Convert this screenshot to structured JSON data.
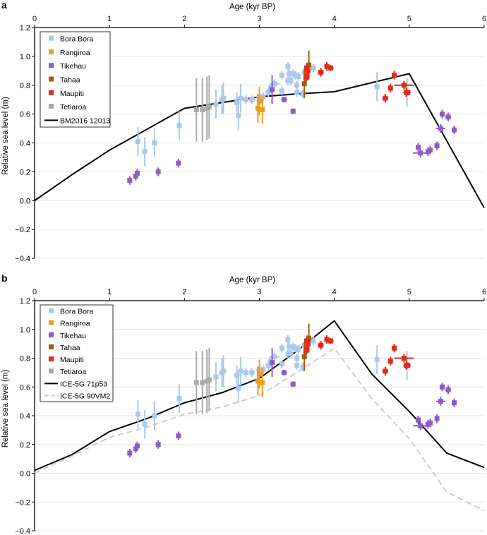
{
  "chart_data": [
    {
      "panel": "a",
      "type": "scatter",
      "xlabel": "Age (kyr BP)",
      "ylabel": "Relative sea level (m)",
      "xlim": [
        0,
        6
      ],
      "ylim": [
        -0.4,
        1.2
      ],
      "xticks": [
        "0",
        "1",
        "2",
        "3",
        "4",
        "5",
        "6"
      ],
      "yticks": [
        "1.2",
        "1.0",
        "0.8",
        "0.6",
        "0.4",
        "0.2",
        "0.0",
        "−0.2",
        "−0.4"
      ],
      "grid": true,
      "legend_position": "top-left",
      "lines": [
        {
          "name": "BM2016 12013",
          "color": "#000000",
          "dash": false,
          "x": [
            0,
            0.5,
            1,
            2,
            3,
            3.5,
            4,
            5,
            6
          ],
          "y": [
            0,
            0.18,
            0.35,
            0.64,
            0.72,
            0.74,
            0.755,
            0.88,
            -0.05
          ]
        }
      ]
    },
    {
      "panel": "b",
      "type": "scatter",
      "xlabel": "Age (kyr BP)",
      "ylabel": "Relative sea level (m)",
      "xlim": [
        0,
        6
      ],
      "ylim": [
        -0.4,
        1.2
      ],
      "xticks": [
        "0",
        "1",
        "2",
        "3",
        "4",
        "5",
        "6"
      ],
      "yticks": [
        "1.2",
        "1.0",
        "0.8",
        "0.6",
        "0.4",
        "0.2",
        "0.0",
        "−0.2",
        "−0.4"
      ],
      "grid": true,
      "legend_position": "top-left",
      "lines": [
        {
          "name": "ICE-5G 71p53",
          "color": "#000000",
          "dash": false,
          "x": [
            0,
            0.5,
            1,
            1.5,
            2,
            2.5,
            3,
            3.5,
            4,
            4.5,
            5,
            5.5,
            6
          ],
          "y": [
            0.02,
            0.13,
            0.29,
            0.38,
            0.49,
            0.56,
            0.66,
            0.85,
            1.06,
            0.69,
            0.43,
            0.14,
            0.04
          ]
        },
        {
          "name": "ICE-5G 90VM2",
          "color": "#cccccc",
          "dash": true,
          "x": [
            0,
            0.5,
            1,
            1.5,
            2,
            2.5,
            3,
            3.5,
            4,
            4.5,
            5,
            5.5,
            6
          ],
          "y": [
            0,
            0.12,
            0.25,
            0.32,
            0.41,
            0.46,
            0.54,
            0.7,
            0.87,
            0.52,
            0.24,
            -0.13,
            -0.26
          ]
        }
      ]
    }
  ],
  "series": [
    {
      "name": "Bora Bora",
      "color": "#a9c9ec",
      "points": [
        [
          1.38,
          0.41,
          0.03,
          0.1
        ],
        [
          1.47,
          0.34,
          0.03,
          0.1
        ],
        [
          1.6,
          0.4,
          0.03,
          0.1
        ],
        [
          1.93,
          0.52,
          0.03,
          0.1
        ],
        [
          2.42,
          0.67,
          0.03,
          0.1
        ],
        [
          2.5,
          0.7,
          0.04,
          0.1
        ],
        [
          2.52,
          0.71,
          0.04,
          0.11
        ],
        [
          2.7,
          0.68,
          0.04,
          0.07
        ],
        [
          2.72,
          0.59,
          0.03,
          0.1
        ],
        [
          2.75,
          0.71,
          0.05,
          0.1
        ],
        [
          2.82,
          0.7,
          0.03,
          0.03
        ],
        [
          2.9,
          0.7,
          0.04,
          0.03
        ],
        [
          3.0,
          0.72,
          0.05,
          0.03
        ],
        [
          3.05,
          0.72,
          0.03,
          0.03
        ],
        [
          3.12,
          0.75,
          0.04,
          0.03
        ],
        [
          3.15,
          0.78,
          0.03,
          0.03
        ],
        [
          3.2,
          0.81,
          0.07,
          0.03
        ],
        [
          3.3,
          0.76,
          0.03,
          0.03
        ],
        [
          3.3,
          0.87,
          0.03,
          0.03
        ],
        [
          3.38,
          0.93,
          0.03,
          0.03
        ],
        [
          3.38,
          0.83,
          0.03,
          0.03
        ],
        [
          3.4,
          0.88,
          0.04,
          0.03
        ],
        [
          3.42,
          0.83,
          0.03,
          0.03
        ],
        [
          3.45,
          0.88,
          0.04,
          0.03
        ],
        [
          3.48,
          0.87,
          0.03,
          0.03
        ],
        [
          3.5,
          0.8,
          0.03,
          0.03
        ],
        [
          3.5,
          0.75,
          0.03,
          0.03
        ],
        [
          3.52,
          0.86,
          0.03,
          0.03
        ],
        [
          3.58,
          0.74,
          0.03,
          0.03
        ],
        [
          3.6,
          0.89,
          0.03,
          0.03
        ],
        [
          3.72,
          0.92,
          0.03,
          0.03
        ],
        [
          4.57,
          0.79,
          0.03,
          0.1
        ],
        [
          4.97,
          0.75,
          0.03,
          0.1
        ]
      ]
    },
    {
      "name": "Rangiroa",
      "color": "#f39a1e",
      "points": [
        [
          2.98,
          0.64,
          0.02,
          0.1
        ],
        [
          3.0,
          0.69,
          0.02,
          0.1
        ],
        [
          3.04,
          0.63,
          0.02,
          0.1
        ]
      ]
    },
    {
      "name": "Tikehau",
      "color": "#8e5cc8",
      "points": [
        [
          1.27,
          0.14,
          0.02,
          0.03
        ],
        [
          1.35,
          0.17,
          0.02,
          0.03
        ],
        [
          1.37,
          0.19,
          0.02,
          0.03
        ],
        [
          1.65,
          0.2,
          0.02,
          0.03
        ],
        [
          1.92,
          0.26,
          0.02,
          0.03
        ],
        [
          3.17,
          0.77,
          0.02,
          0.1
        ],
        [
          3.33,
          0.7,
          0.04,
          0.02
        ],
        [
          3.45,
          0.62,
          0.03,
          0.02
        ],
        [
          5.12,
          0.37,
          0.02,
          0.03
        ],
        [
          5.15,
          0.33,
          0.1,
          0.03
        ],
        [
          5.25,
          0.34,
          0.03,
          0.03
        ],
        [
          5.28,
          0.35,
          0.03,
          0.03
        ],
        [
          5.37,
          0.38,
          0.03,
          0.03
        ],
        [
          5.42,
          0.5,
          0.06,
          0.03
        ],
        [
          5.44,
          0.6,
          0.03,
          0.03
        ],
        [
          5.52,
          0.58,
          0.04,
          0.03
        ],
        [
          5.6,
          0.49,
          0.03,
          0.03
        ]
      ]
    },
    {
      "name": "Tahaa",
      "color": "#a15b0c",
      "points": [
        [
          3.6,
          0.81,
          0.02,
          0.1
        ],
        [
          3.62,
          0.85,
          0.02,
          0.05
        ],
        [
          3.66,
          0.94,
          0.02,
          0.1
        ]
      ]
    },
    {
      "name": "Maupiti",
      "color": "#e02a1e",
      "points": [
        [
          3.63,
          0.92,
          0.03,
          0.03
        ],
        [
          3.63,
          0.86,
          0.03,
          0.03
        ],
        [
          3.65,
          0.9,
          0.03,
          0.03
        ],
        [
          3.82,
          0.89,
          0.04,
          0.03
        ],
        [
          3.9,
          0.93,
          0.03,
          0.03
        ],
        [
          3.95,
          0.92,
          0.04,
          0.02
        ],
        [
          4.68,
          0.71,
          0.04,
          0.03
        ],
        [
          4.75,
          0.78,
          0.03,
          0.03
        ],
        [
          4.8,
          0.87,
          0.03,
          0.03
        ],
        [
          4.93,
          0.8,
          0.13,
          0.03
        ],
        [
          4.96,
          0.75,
          0.04,
          0.03
        ],
        [
          4.98,
          0.75,
          0.04,
          0.02
        ]
      ]
    },
    {
      "name": "Tetiaroa",
      "color": "#aaaaaa",
      "points": [
        [
          2.16,
          0.63,
          0.02,
          0.22
        ],
        [
          2.24,
          0.63,
          0.02,
          0.22
        ],
        [
          2.3,
          0.64,
          0.02,
          0.22
        ],
        [
          2.33,
          0.65,
          0.02,
          0.22
        ]
      ]
    }
  ]
}
